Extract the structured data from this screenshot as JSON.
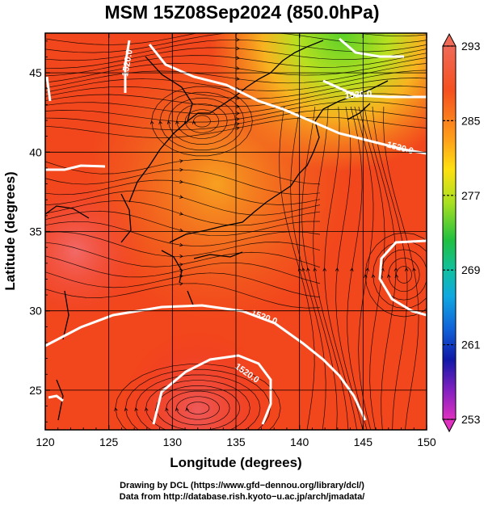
{
  "title": "MSM 15Z08Sep2024 (850.0hPa)",
  "chart_data": {
    "type": "map",
    "xlabel": "Longitude (degrees)",
    "ylabel": "Latitude  (degrees)",
    "x_ticks": [
      "120",
      "125",
      "130",
      "135",
      "140",
      "145",
      "150"
    ],
    "y_ticks": [
      "25",
      "30",
      "35",
      "40",
      "45"
    ],
    "xlim": [
      120,
      150
    ],
    "ylim": [
      22.5,
      47.5
    ],
    "colorbar": {
      "ticks": [
        "293",
        "285",
        "277",
        "269",
        "261",
        "253"
      ],
      "range": [
        253,
        293
      ]
    },
    "contours": [
      {
        "label": "1520.0"
      },
      {
        "label": "1520.0"
      },
      {
        "label": "1520.0"
      },
      {
        "label": "1520.0"
      },
      {
        "label": "1520.0"
      }
    ]
  },
  "credits": {
    "line1": "Drawing by DCL (https://www.gfd−dennou.org/library/dcl/)",
    "line2": "Data from http://database.rish.kyoto−u.ac.jp/arch/jmadata/"
  }
}
